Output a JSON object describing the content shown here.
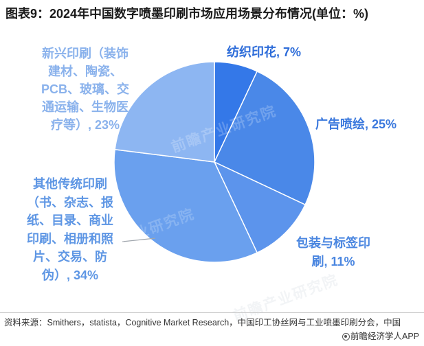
{
  "chart_data": {
    "type": "pie",
    "title": "图表9：2024年中国数字喷墨印刷市场应用场景分布情况(单位：%)",
    "unit": "%",
    "legend": "none",
    "slices": [
      {
        "name": "纺织印花",
        "value": 7,
        "label": "纺织印花, 7%",
        "color": "#3478E8",
        "label_color": "#2D6CD9"
      },
      {
        "name": "广告喷绘",
        "value": 25,
        "label": "广告喷绘, 25%",
        "color": "#4A88E8",
        "label_color": "#3A78DD"
      },
      {
        "name": "包装与标签印刷",
        "value": 11,
        "label": "包装与标签印刷, 11%",
        "color": "#5C94EC",
        "label_color": "#4A86E0"
      },
      {
        "name": "其他传统印刷（书、杂志、报纸、目录、商业印刷、相册和照片、交易、防伪）",
        "value": 34,
        "label": "其他传统印刷（书、杂志、报纸、目录、商业印刷、相册和照片、交易、防伪）, 34%",
        "color": "#6AA0EE",
        "label_color": "#5E96E4"
      },
      {
        "name": "新兴印刷（装饰建材、陶瓷、PCB、玻璃、交通运输、生物医疗等）",
        "value": 23,
        "label": "新兴印刷（装饰建材、陶瓷、PCB、玻璃、交通运输、生物医疗等）, 23%",
        "color": "#8DB6F2",
        "label_color": "#8AB2EC"
      }
    ]
  },
  "source": "资料来源：Smithers，statista，Cognitive Market Research，中国印工协丝网与工业喷墨印刷分会，中国",
  "brand": {
    "icon": "qianzhan-logo-icon",
    "text": "前瞻经济学人APP"
  },
  "watermark": "前瞻产业研究院"
}
